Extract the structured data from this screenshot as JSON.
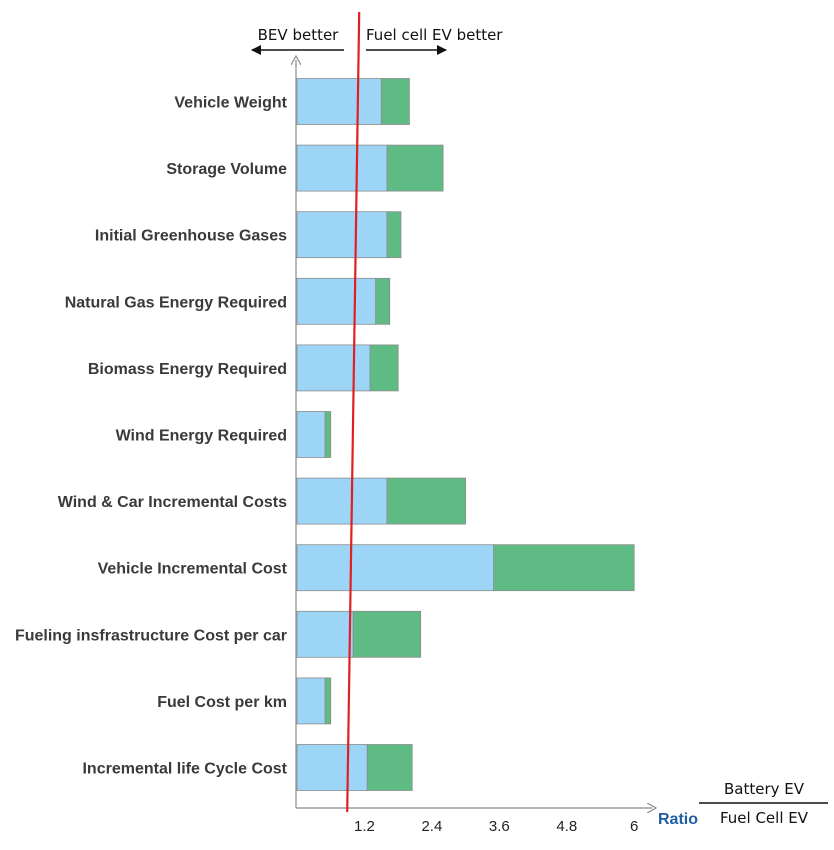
{
  "chart_data": {
    "type": "bar",
    "orientation": "horizontal",
    "stacked": true,
    "categories": [
      "Vehicle Weight",
      "Storage Volume",
      "Initial Greenhouse Gases",
      "Natural Gas Energy Required",
      "Biomass Energy Required",
      "Wind Energy Required",
      "Wind & Car Incremental Costs",
      "Vehicle Incremental Cost",
      "Fueling insfrastructure Cost per car",
      "Fuel Cost per km",
      "Incremental life Cycle Cost"
    ],
    "series": [
      {
        "color": "#9dd5f7",
        "values": [
          1.5,
          1.6,
          1.6,
          1.4,
          1.3,
          0.5,
          1.6,
          3.5,
          1.0,
          0.5,
          1.25
        ]
      },
      {
        "color": "#5fbb84",
        "values": [
          0.5,
          1.0,
          0.25,
          0.25,
          0.5,
          0.1,
          1.4,
          2.5,
          1.2,
          0.1,
          0.8
        ]
      }
    ],
    "xticks": [
      "1.2",
      "2.4",
      "3.6",
      "4.8",
      "6"
    ],
    "xtick_values": [
      1.2,
      2.4,
      3.6,
      4.8,
      6
    ],
    "xlim": [
      0,
      6.3
    ],
    "reference_line": {
      "value": 1.0,
      "color": "#e02020"
    },
    "xlabel": "Ratio",
    "ratio_fraction": {
      "numerator": "Battery EV",
      "denominator": "Fuel Cell EV"
    },
    "annotations": {
      "left": "BEV better",
      "right": "Fuel cell EV better"
    },
    "grid": false
  }
}
